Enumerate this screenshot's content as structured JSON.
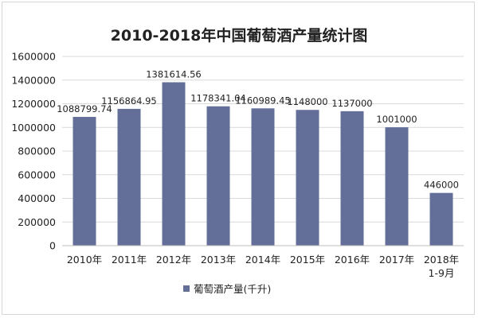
{
  "chart_data": {
    "type": "bar",
    "title": "2010-2018年中国葡萄酒产量统计图",
    "categories": [
      "2010年",
      "2011年",
      "2012年",
      "2013年",
      "2014年",
      "2015年",
      "2016年",
      "2017年",
      "2018年\n1-9月"
    ],
    "series": [
      {
        "name": "葡萄酒产量(千升)",
        "values": [
          1088799.74,
          1156864.95,
          1381614.56,
          1178341.04,
          1160989.45,
          1148000,
          1137000,
          1001000,
          446000
        ],
        "value_labels": [
          "1088799.74",
          "1156864.95",
          "1381614.56",
          "1178341.04",
          "1160989.45",
          "1148000",
          "1137000",
          "1001000",
          "446000"
        ]
      }
    ],
    "yticks": [
      "0",
      "200000",
      "400000",
      "600000",
      "800000",
      "1000000",
      "1200000",
      "1400000",
      "1600000"
    ],
    "ylim": [
      0,
      1600000
    ],
    "grid": true,
    "legend_position": "bottom-center",
    "colors": {
      "bar": "#636f99",
      "grid": "#d9d9d9",
      "axis": "#bfbfbf"
    }
  }
}
